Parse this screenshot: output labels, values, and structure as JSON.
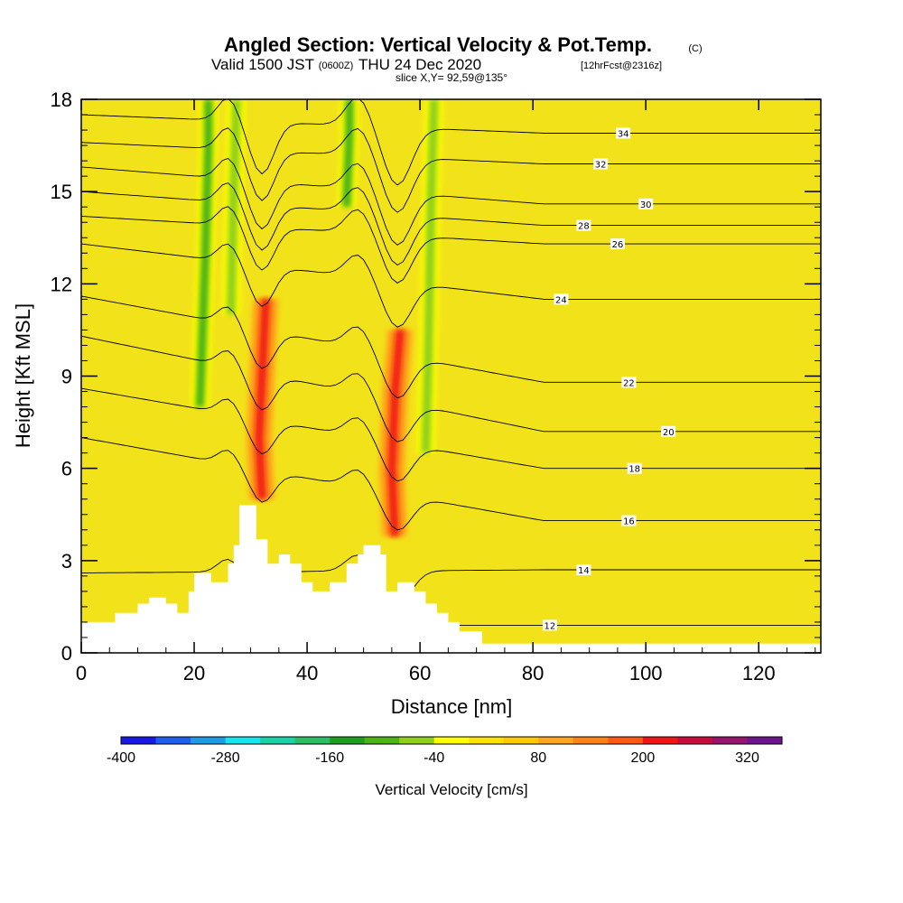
{
  "header": {
    "title": "Angled Section: Vertical Velocity & Pot.Temp.",
    "copyright": "(C)",
    "valid_prefix": "Valid 1500 JST",
    "utc": "(0600Z)",
    "valid_date": "THU 24 Dec 2020",
    "forecast": "[12hrFcst@2316z]",
    "slice": "slice X,Y= 92,59@135°"
  },
  "chart_data": {
    "type": "heatmap",
    "xlabel": "Distance [nm]",
    "ylabel": "Height [Kft MSL]",
    "xlim": [
      0,
      131
    ],
    "ylim": [
      0,
      18
    ],
    "x_ticks": [
      0,
      20,
      40,
      60,
      80,
      100,
      120
    ],
    "y_ticks": [
      0,
      3,
      6,
      9,
      12,
      15,
      18
    ],
    "background_color": "#f2e21a",
    "colorbar": {
      "title": "Vertical Velocity [cm/s]",
      "tick_labels": [
        "-400",
        "-280",
        "-160",
        "-40",
        "80",
        "200",
        "320"
      ],
      "colors": [
        "#1919e6",
        "#1e5ef0",
        "#1e9be6",
        "#14e6f0",
        "#19d2a8",
        "#2dbe64",
        "#1ea01e",
        "#4cb414",
        "#8fcf1a",
        "#ffff00",
        "#ffe100",
        "#ffc800",
        "#ffa51e",
        "#ff8214",
        "#ff5a14",
        "#f01414",
        "#c80a3c",
        "#96146e",
        "#6e148c"
      ]
    },
    "terrain": [
      [
        0,
        1.0
      ],
      [
        6,
        1.0
      ],
      [
        6,
        1.3
      ],
      [
        10,
        1.3
      ],
      [
        10,
        1.6
      ],
      [
        12,
        1.6
      ],
      [
        12,
        1.8
      ],
      [
        15,
        1.8
      ],
      [
        15,
        1.6
      ],
      [
        17,
        1.6
      ],
      [
        17,
        1.3
      ],
      [
        19,
        1.3
      ],
      [
        19,
        2.0
      ],
      [
        20,
        2.0
      ],
      [
        20,
        2.6
      ],
      [
        23,
        2.6
      ],
      [
        23,
        2.3
      ],
      [
        26,
        2.3
      ],
      [
        26,
        2.9
      ],
      [
        27,
        2.9
      ],
      [
        27,
        3.5
      ],
      [
        28,
        3.5
      ],
      [
        28,
        4.8
      ],
      [
        31,
        4.8
      ],
      [
        31,
        3.7
      ],
      [
        33,
        3.7
      ],
      [
        33,
        2.9
      ],
      [
        35,
        2.9
      ],
      [
        35,
        3.2
      ],
      [
        37,
        3.2
      ],
      [
        37,
        2.9
      ],
      [
        39,
        2.9
      ],
      [
        39,
        2.3
      ],
      [
        41,
        2.3
      ],
      [
        41,
        2.0
      ],
      [
        44,
        2.0
      ],
      [
        44,
        2.3
      ],
      [
        47,
        2.3
      ],
      [
        47,
        2.9
      ],
      [
        49,
        2.9
      ],
      [
        49,
        3.2
      ],
      [
        50,
        3.2
      ],
      [
        50,
        3.5
      ],
      [
        53,
        3.5
      ],
      [
        53,
        3.2
      ],
      [
        54,
        3.2
      ],
      [
        54,
        2.0
      ],
      [
        56,
        2.0
      ],
      [
        56,
        2.3
      ],
      [
        59,
        2.3
      ],
      [
        59,
        2.0
      ],
      [
        61,
        2.0
      ],
      [
        61,
        1.6
      ],
      [
        63,
        1.6
      ],
      [
        63,
        1.3
      ],
      [
        65,
        1.3
      ],
      [
        65,
        1.0
      ],
      [
        67,
        1.0
      ],
      [
        67,
        0.7
      ],
      [
        71,
        0.7
      ],
      [
        71,
        0.3
      ],
      [
        131,
        0.3
      ]
    ],
    "updraft_bands": [
      {
        "x": [
          [
            32.0,
            5.0
          ],
          [
            31.5,
            7.0
          ],
          [
            32.0,
            9.0
          ],
          [
            32.7,
            11.5
          ]
        ],
        "value": 200
      },
      {
        "x": [
          [
            55.5,
            3.8
          ],
          [
            55.0,
            6.0
          ],
          [
            55.6,
            8.5
          ],
          [
            56.5,
            10.5
          ]
        ],
        "value": 200
      }
    ],
    "downdraft_bands": [
      {
        "x": [
          [
            21.0,
            8.0
          ],
          [
            22.0,
            13.0
          ],
          [
            22.5,
            16.5
          ],
          [
            22.5,
            18.0
          ]
        ],
        "value": -120
      },
      {
        "x": [
          [
            26.5,
            11.0
          ],
          [
            27.0,
            15.0
          ],
          [
            27.5,
            18.0
          ]
        ],
        "value": -80
      },
      {
        "x": [
          [
            47.0,
            14.5
          ],
          [
            47.5,
            17.0
          ],
          [
            47.5,
            18.0
          ]
        ],
        "value": -100
      },
      {
        "x": [
          [
            61.0,
            6.5
          ],
          [
            61.5,
            10.0
          ],
          [
            62.0,
            15.0
          ],
          [
            62.5,
            18.0
          ]
        ],
        "value": -80
      }
    ],
    "contours": [
      {
        "label": "12",
        "y_left": 0.9,
        "y_right": 0.9,
        "label_x": 83
      },
      {
        "label": "14",
        "y_left": 2.6,
        "y_right": 2.7,
        "label_x": 89
      },
      {
        "label": "16",
        "y_left": 7.0,
        "y_right": 4.3,
        "label_x": 97
      },
      {
        "label": "18",
        "y_left": 8.6,
        "y_right": 6.0,
        "label_x": 98
      },
      {
        "label": "20",
        "y_left": 10.3,
        "y_right": 7.2,
        "label_x": 104
      },
      {
        "label": "22",
        "y_left": 11.6,
        "y_right": 8.8,
        "label_x": 97
      },
      {
        "label": "24",
        "y_left": 13.3,
        "y_right": 11.5,
        "label_x": 85
      },
      {
        "label": "26",
        "y_left": 14.2,
        "y_right": 13.3,
        "label_x": 95
      },
      {
        "label": "28",
        "y_left": 15.0,
        "y_right": 13.9,
        "label_x": 89
      },
      {
        "label": "30",
        "y_left": 15.8,
        "y_right": 14.6,
        "label_x": 100
      },
      {
        "label": "32",
        "y_left": 16.6,
        "y_right": 15.9,
        "label_x": 92
      },
      {
        "label": "34",
        "y_left": 17.5,
        "y_right": 16.9,
        "label_x": 96
      }
    ]
  }
}
